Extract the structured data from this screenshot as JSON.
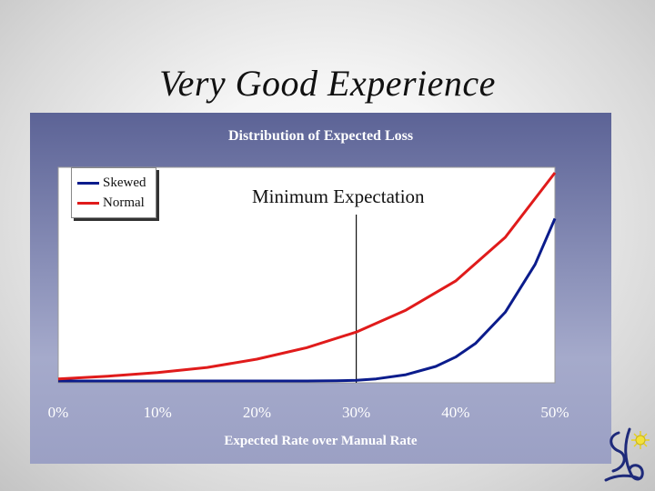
{
  "slide": {
    "title": "Very Good Experience"
  },
  "chart_data": {
    "type": "line",
    "title": "Distribution of Expected Loss",
    "xlabel": "Expected Rate over Manual Rate",
    "ylabel": "",
    "x_tick_labels": [
      "0%",
      "10%",
      "20%",
      "30%",
      "40%",
      "50%"
    ],
    "xlim": [
      0,
      50
    ],
    "grid": false,
    "legend_position": "top-left",
    "annotation": {
      "text": "Minimum Expectation",
      "x": 30
    },
    "series": [
      {
        "name": "Skewed",
        "color": "#0b1c8c",
        "x": [
          0,
          5,
          10,
          15,
          20,
          25,
          28,
          30,
          32,
          35,
          38,
          40,
          42,
          45,
          48,
          50
        ],
        "y": [
          0,
          0,
          0,
          0,
          0,
          0,
          0.1,
          0.3,
          1,
          3,
          7,
          11.5,
          18,
          33,
          56,
          78
        ]
      },
      {
        "name": "Normal",
        "color": "#e01b1b",
        "x": [
          0,
          5,
          10,
          15,
          20,
          25,
          30,
          35,
          40,
          45,
          50
        ],
        "y": [
          1,
          2.3,
          4,
          6.5,
          10.5,
          16,
          23.5,
          34,
          48,
          69,
          100
        ]
      }
    ]
  }
}
